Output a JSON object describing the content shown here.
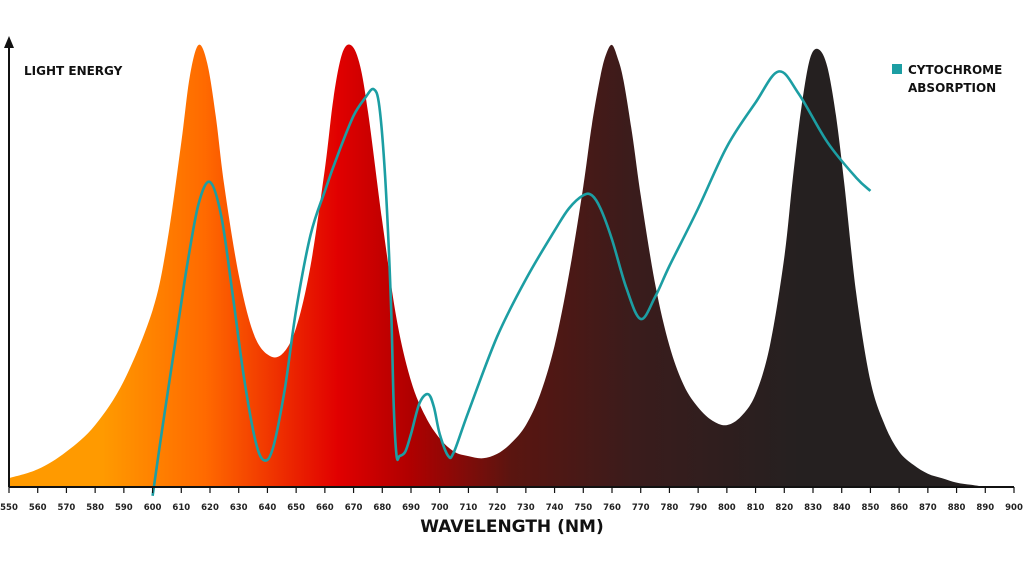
{
  "chart_data": {
    "type": "area",
    "xlabel": "WAVELENGTH (NM)",
    "ylabel": "LIGHT ENERGY",
    "xlim": [
      550,
      900
    ],
    "ylim": [
      0,
      1
    ],
    "x_ticks": [
      550,
      560,
      570,
      580,
      590,
      600,
      610,
      620,
      630,
      640,
      650,
      660,
      670,
      680,
      690,
      700,
      710,
      720,
      730,
      740,
      750,
      760,
      770,
      780,
      790,
      800,
      810,
      820,
      830,
      840,
      850,
      860,
      870,
      880,
      890,
      900
    ],
    "grid": false,
    "legend": "top-right",
    "series": [
      {
        "kind": "filled-area",
        "color_gradient": [
          "#ff9a00",
          "#ff6a00",
          "#e10000",
          "#b00000",
          "#5a1510",
          "#3a1c1c",
          "#252020"
        ],
        "x": [
          550,
          560,
          570,
          580,
          590,
          600,
          605,
          610,
          613,
          616,
          619,
          622,
          625,
          630,
          635,
          640,
          645,
          650,
          655,
          660,
          663,
          666,
          669,
          672,
          675,
          680,
          685,
          690,
          695,
          700,
          705,
          710,
          715,
          720,
          725,
          730,
          735,
          740,
          745,
          750,
          753,
          756,
          758,
          760,
          762,
          764,
          767,
          770,
          775,
          780,
          785,
          790,
          795,
          800,
          805,
          810,
          815,
          820,
          823,
          826,
          829,
          832,
          835,
          838,
          841,
          845,
          850,
          855,
          860,
          865,
          870,
          875,
          880,
          885,
          890
        ],
        "y": [
          0.02,
          0.04,
          0.08,
          0.14,
          0.24,
          0.4,
          0.55,
          0.78,
          0.93,
          1.0,
          0.96,
          0.84,
          0.68,
          0.48,
          0.35,
          0.3,
          0.3,
          0.36,
          0.5,
          0.72,
          0.88,
          0.98,
          1.0,
          0.96,
          0.85,
          0.6,
          0.38,
          0.24,
          0.16,
          0.11,
          0.08,
          0.07,
          0.065,
          0.075,
          0.1,
          0.14,
          0.21,
          0.32,
          0.48,
          0.68,
          0.82,
          0.93,
          0.98,
          1.0,
          0.97,
          0.92,
          0.8,
          0.66,
          0.46,
          0.32,
          0.23,
          0.18,
          0.15,
          0.14,
          0.16,
          0.21,
          0.32,
          0.52,
          0.7,
          0.86,
          0.97,
          0.99,
          0.95,
          0.84,
          0.68,
          0.44,
          0.24,
          0.14,
          0.08,
          0.05,
          0.03,
          0.02,
          0.01,
          0.005,
          0.0
        ]
      },
      {
        "name": "CYTOCHROME ABSORPTION",
        "kind": "line",
        "color": "#1c9ea3",
        "x": [
          600,
          604,
          608,
          612,
          616,
          620,
          624,
          628,
          632,
          636,
          639,
          642,
          646,
          650,
          655,
          660,
          665,
          670,
          674,
          677,
          679,
          681,
          683,
          684,
          685,
          686,
          688,
          690,
          693,
          696,
          698,
          700,
          703,
          705,
          710,
          720,
          730,
          740,
          745,
          750,
          753,
          756,
          760,
          765,
          770,
          775,
          780,
          790,
          800,
          810,
          818,
          825,
          835,
          845,
          850
        ],
        "y": [
          -0.02,
          0.16,
          0.33,
          0.5,
          0.64,
          0.69,
          0.61,
          0.43,
          0.24,
          0.1,
          0.06,
          0.09,
          0.22,
          0.4,
          0.57,
          0.67,
          0.76,
          0.84,
          0.88,
          0.9,
          0.86,
          0.7,
          0.42,
          0.18,
          0.07,
          0.07,
          0.08,
          0.12,
          0.19,
          0.21,
          0.18,
          0.12,
          0.07,
          0.08,
          0.17,
          0.34,
          0.47,
          0.58,
          0.63,
          0.66,
          0.66,
          0.63,
          0.56,
          0.45,
          0.38,
          0.43,
          0.5,
          0.63,
          0.77,
          0.87,
          0.94,
          0.89,
          0.78,
          0.7,
          0.67
        ]
      }
    ]
  }
}
